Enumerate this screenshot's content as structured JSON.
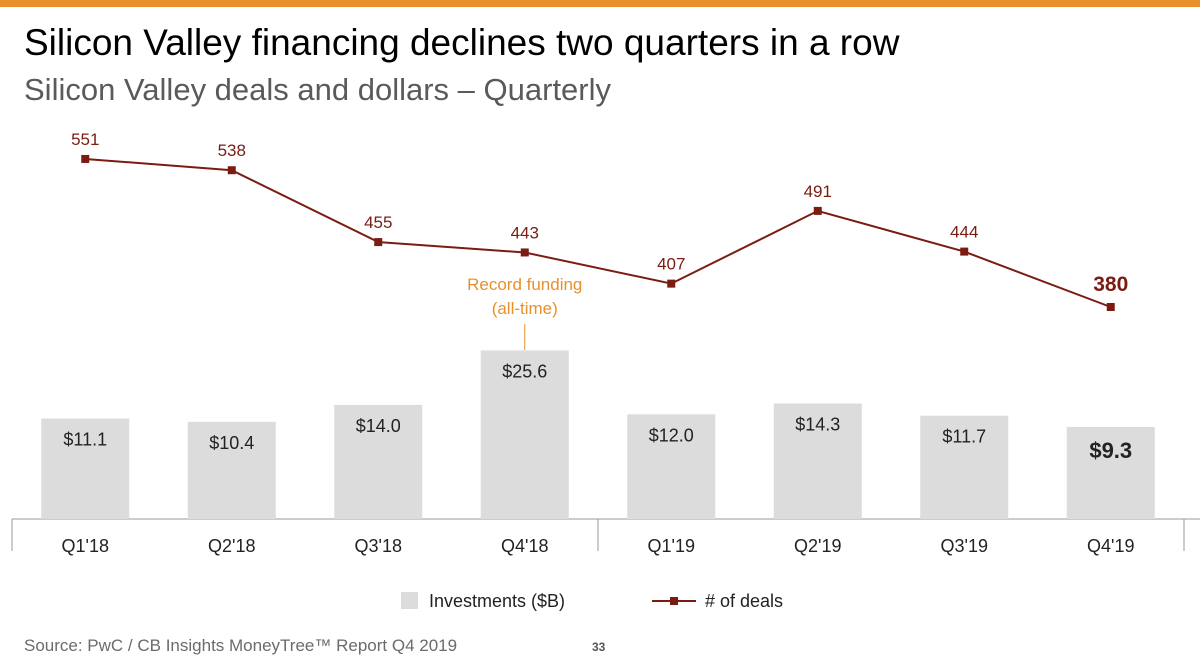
{
  "header": {
    "title": "Silicon Valley financing declines two quarters in a row",
    "subtitle": "Silicon Valley deals and dollars – Quarterly"
  },
  "colors": {
    "accent": "#e8902a",
    "bar": "#dcdcdc",
    "line": "#7a1c12",
    "annotation": "#e8902a"
  },
  "chart_data": {
    "type": "bar",
    "categories": [
      "Q1'18",
      "Q2'18",
      "Q3'18",
      "Q4'18",
      "Q1'19",
      "Q2'19",
      "Q3'19",
      "Q4'19"
    ],
    "series": [
      {
        "name": "Investments ($B)",
        "type": "bar",
        "values": [
          11.1,
          10.4,
          14.0,
          25.6,
          12.0,
          14.3,
          11.7,
          9.3
        ],
        "labels": [
          "$11.1",
          "$10.4",
          "$14.0",
          "$25.6",
          "$12.0",
          "$14.3",
          "$11.7",
          "$9.3"
        ]
      },
      {
        "name": "# of deals",
        "type": "line",
        "values": [
          551,
          538,
          455,
          443,
          407,
          491,
          444,
          380
        ],
        "labels": [
          "551",
          "538",
          "455",
          "443",
          "407",
          "491",
          "444",
          "380"
        ]
      }
    ],
    "annotation": {
      "text_line1": "Record funding",
      "text_line2": "(all-time)",
      "category": "Q4'18"
    },
    "legend": {
      "placement": "bottom",
      "bar_label": "Investments ($B)",
      "line_label": "# of deals"
    }
  },
  "footer": {
    "source": "Source: PwC / CB Insights MoneyTree™ Report Q4 2019",
    "page": "33"
  }
}
